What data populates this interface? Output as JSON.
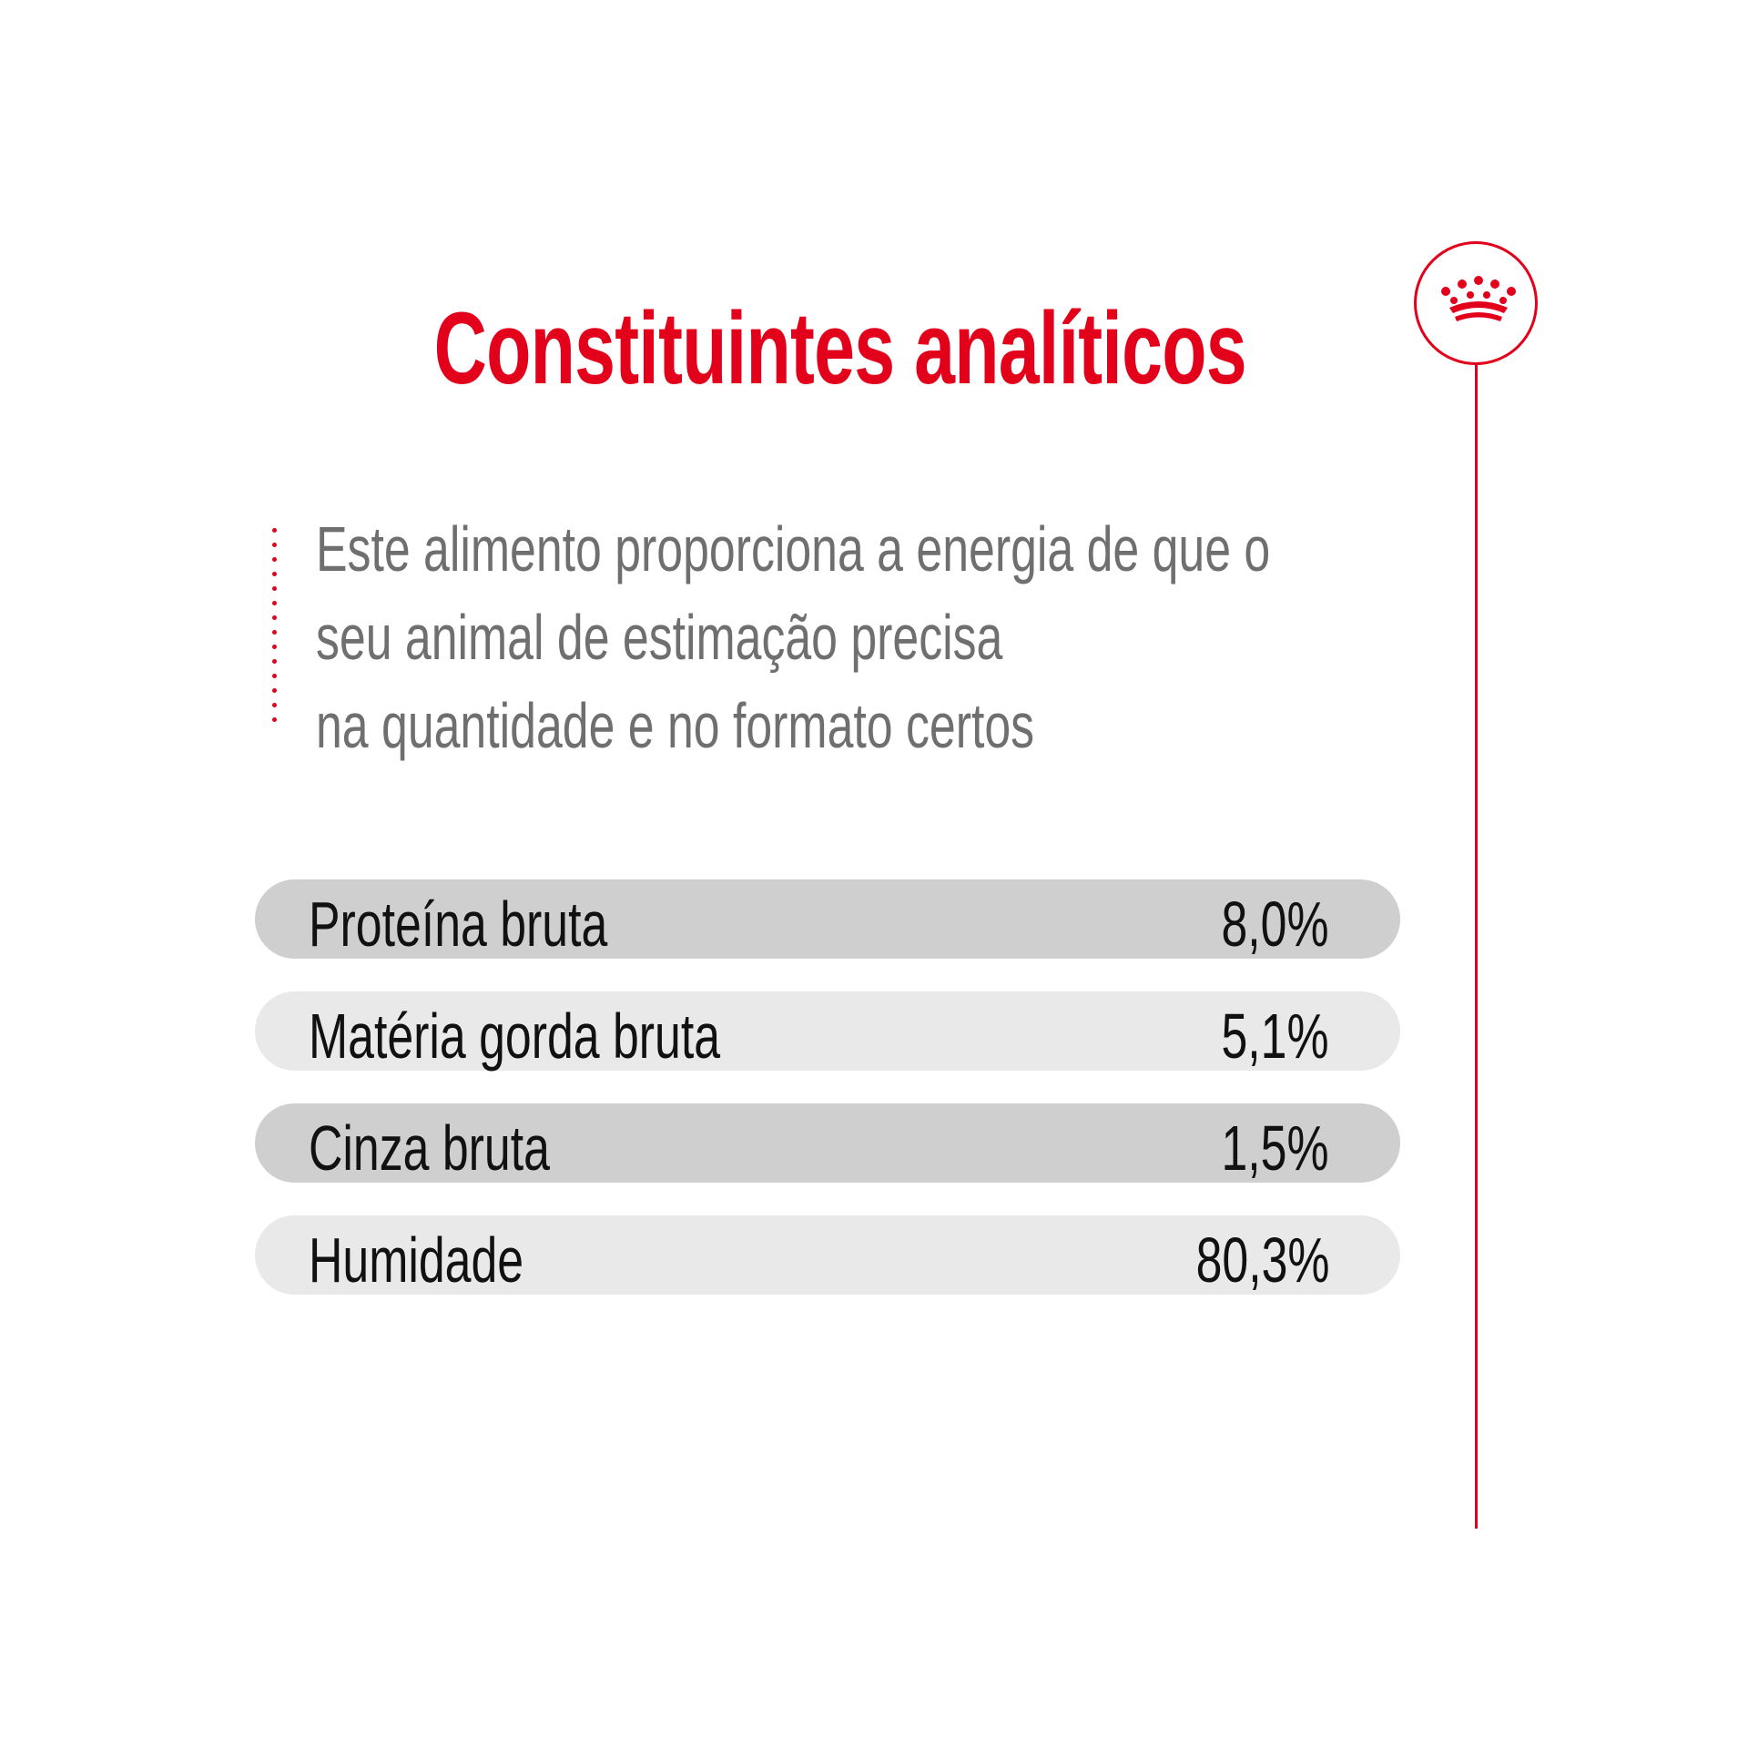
{
  "header": {
    "title": "Constituintes analíticos"
  },
  "brand": {
    "logo_icon": "crown-icon",
    "accent_color": "#e3001b"
  },
  "description": {
    "lines": [
      "Este alimento proporciona a energia de que o",
      "seu animal de estimação precisa",
      "na quantidade e no formato certos"
    ]
  },
  "constituents": [
    {
      "label": "Proteína bruta",
      "value": "8,0%"
    },
    {
      "label": "Matéria gorda bruta",
      "value": "5,1%"
    },
    {
      "label": "Cinza bruta",
      "value": "1,5%"
    },
    {
      "label": "Humidade",
      "value": "80,3%"
    }
  ]
}
